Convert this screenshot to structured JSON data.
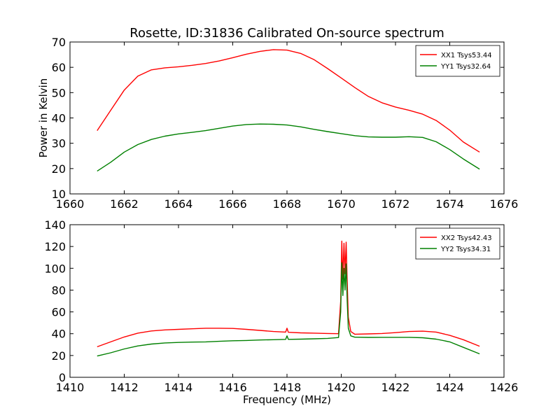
{
  "figure": {
    "title": "Rosette, ID:31836 Calibrated On-source spectrum"
  },
  "chart_data": [
    {
      "type": "line",
      "title": "Rosette, ID:31836 Calibrated On-source spectrum",
      "xlabel": "",
      "ylabel": "Power in Kelvin",
      "xlim": [
        1660,
        1676
      ],
      "ylim": [
        10,
        70
      ],
      "xticks": [
        1660,
        1662,
        1664,
        1666,
        1668,
        1670,
        1672,
        1674,
        1676
      ],
      "yticks": [
        10,
        20,
        30,
        40,
        50,
        60,
        70
      ],
      "grid": false,
      "legend_position": "top-right",
      "series": [
        {
          "name": "XX1 Tsys53.44",
          "color": "#ff0000",
          "x": [
            1661.0,
            1661.5,
            1662.0,
            1662.5,
            1663.0,
            1663.5,
            1664.0,
            1664.5,
            1665.0,
            1665.5,
            1666.0,
            1666.5,
            1667.0,
            1667.5,
            1668.0,
            1668.5,
            1669.0,
            1669.5,
            1670.0,
            1670.5,
            1671.0,
            1671.5,
            1672.0,
            1672.5,
            1673.0,
            1673.5,
            1674.0,
            1674.5,
            1675.1
          ],
          "y": [
            35.0,
            43.0,
            51.0,
            56.5,
            59.0,
            59.8,
            60.2,
            60.8,
            61.5,
            62.5,
            63.8,
            65.2,
            66.3,
            67.0,
            66.8,
            65.5,
            63.0,
            59.5,
            55.8,
            52.0,
            48.5,
            46.0,
            44.3,
            43.0,
            41.5,
            39.0,
            35.2,
            30.5,
            26.5
          ]
        },
        {
          "name": "YY1 Tsys32.64",
          "color": "#008000",
          "x": [
            1661.0,
            1661.5,
            1662.0,
            1662.5,
            1663.0,
            1663.5,
            1664.0,
            1664.5,
            1665.0,
            1665.5,
            1666.0,
            1666.5,
            1667.0,
            1667.5,
            1668.0,
            1668.5,
            1669.0,
            1669.5,
            1670.0,
            1670.5,
            1671.0,
            1671.5,
            1672.0,
            1672.5,
            1673.0,
            1673.5,
            1674.0,
            1674.5,
            1675.1
          ],
          "y": [
            19.0,
            22.5,
            26.5,
            29.5,
            31.5,
            32.8,
            33.7,
            34.3,
            35.0,
            35.9,
            36.8,
            37.4,
            37.6,
            37.5,
            37.2,
            36.5,
            35.5,
            34.6,
            33.8,
            33.0,
            32.5,
            32.4,
            32.4,
            32.6,
            32.3,
            30.6,
            27.5,
            23.8,
            19.8
          ]
        }
      ]
    },
    {
      "type": "line",
      "title": "",
      "xlabel": "Frequency (MHz)",
      "ylabel": "",
      "xlim": [
        1410,
        1426
      ],
      "ylim": [
        0,
        140
      ],
      "xticks": [
        1410,
        1412,
        1414,
        1416,
        1418,
        1420,
        1422,
        1424,
        1426
      ],
      "yticks": [
        0,
        20,
        40,
        60,
        80,
        100,
        120,
        140
      ],
      "grid": false,
      "legend_position": "top-right",
      "series": [
        {
          "name": "XX2 Tsys42.43",
          "color": "#ff0000",
          "x": [
            1411.0,
            1411.5,
            1412.0,
            1412.5,
            1413.0,
            1413.5,
            1414.0,
            1414.5,
            1415.0,
            1415.5,
            1416.0,
            1416.5,
            1417.0,
            1417.5,
            1417.95,
            1418.0,
            1418.05,
            1418.5,
            1419.0,
            1419.5,
            1419.9,
            1419.98,
            1420.02,
            1420.06,
            1420.1,
            1420.14,
            1420.18,
            1420.22,
            1420.26,
            1420.35,
            1420.5,
            1421.0,
            1421.5,
            1422.0,
            1422.5,
            1423.0,
            1423.5,
            1424.0,
            1424.5,
            1425.1
          ],
          "y": [
            28.0,
            32.5,
            37.0,
            40.5,
            42.5,
            43.5,
            44.0,
            44.5,
            45.0,
            45.0,
            44.8,
            44.0,
            43.0,
            42.0,
            41.5,
            45.0,
            41.3,
            40.8,
            40.5,
            40.2,
            40.0,
            70.0,
            125.0,
            90.0,
            123.0,
            95.0,
            124.0,
            88.0,
            55.0,
            42.0,
            39.5,
            39.8,
            40.2,
            41.0,
            42.0,
            42.3,
            41.5,
            38.5,
            34.5,
            28.5
          ]
        },
        {
          "name": "YY2 Tsys34.31",
          "color": "#008000",
          "x": [
            1411.0,
            1411.5,
            1412.0,
            1412.5,
            1413.0,
            1413.5,
            1414.0,
            1414.5,
            1415.0,
            1415.5,
            1416.0,
            1416.5,
            1417.0,
            1417.5,
            1417.95,
            1418.0,
            1418.05,
            1418.5,
            1419.0,
            1419.5,
            1419.9,
            1419.98,
            1420.02,
            1420.06,
            1420.1,
            1420.14,
            1420.18,
            1420.22,
            1420.26,
            1420.35,
            1420.5,
            1421.0,
            1421.5,
            1422.0,
            1422.5,
            1423.0,
            1423.5,
            1424.0,
            1424.5,
            1425.1
          ],
          "y": [
            19.5,
            22.5,
            26.0,
            28.8,
            30.5,
            31.5,
            32.0,
            32.3,
            32.5,
            33.0,
            33.5,
            33.8,
            34.2,
            34.5,
            34.8,
            38.0,
            34.8,
            35.0,
            35.3,
            35.7,
            36.5,
            60.0,
            105.0,
            75.0,
            100.0,
            80.0,
            104.0,
            70.0,
            45.0,
            38.0,
            36.8,
            36.6,
            36.7,
            36.7,
            36.7,
            36.3,
            35.0,
            32.5,
            27.5,
            21.5
          ]
        }
      ]
    }
  ]
}
